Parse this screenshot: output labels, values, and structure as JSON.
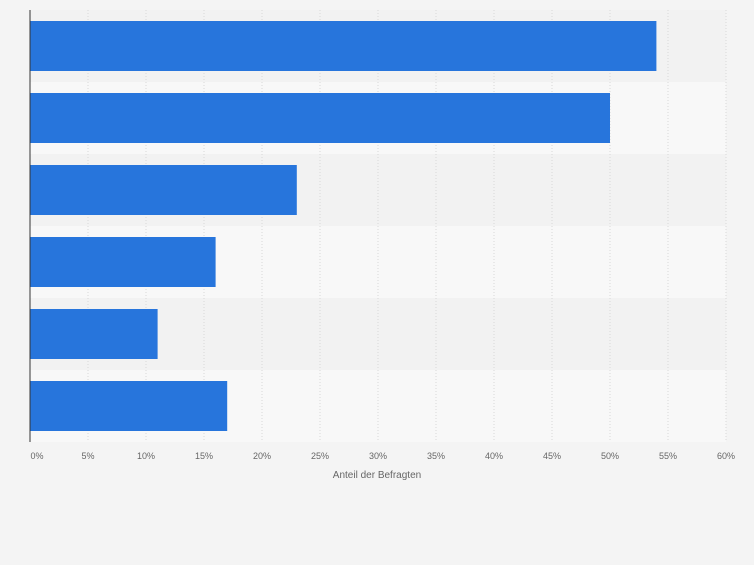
{
  "chart_data": {
    "type": "bar",
    "orientation": "horizontal",
    "categories": [
      "",
      "",
      "",
      "",
      "",
      ""
    ],
    "values": [
      54,
      50,
      23,
      16,
      11,
      17
    ],
    "title": "",
    "xlabel": "Anteil der Befragten",
    "ylabel": "",
    "xlim": [
      0,
      60
    ],
    "xticks": [
      0,
      5,
      10,
      15,
      20,
      25,
      30,
      35,
      40,
      45,
      50,
      55,
      60
    ],
    "xtick_labels": [
      "0%",
      "5%",
      "10%",
      "15%",
      "20%",
      "25%",
      "30%",
      "35%",
      "40%",
      "45%",
      "50%",
      "55%",
      "60%"
    ],
    "grid": true,
    "colors": {
      "bar": "#2775dc",
      "band_light": "#f8f8f8",
      "band_dark": "#f2f2f2",
      "grid": "#d8d8d8",
      "axis": "#333333",
      "tick_text": "#666666",
      "background": "#f4f4f4"
    }
  }
}
